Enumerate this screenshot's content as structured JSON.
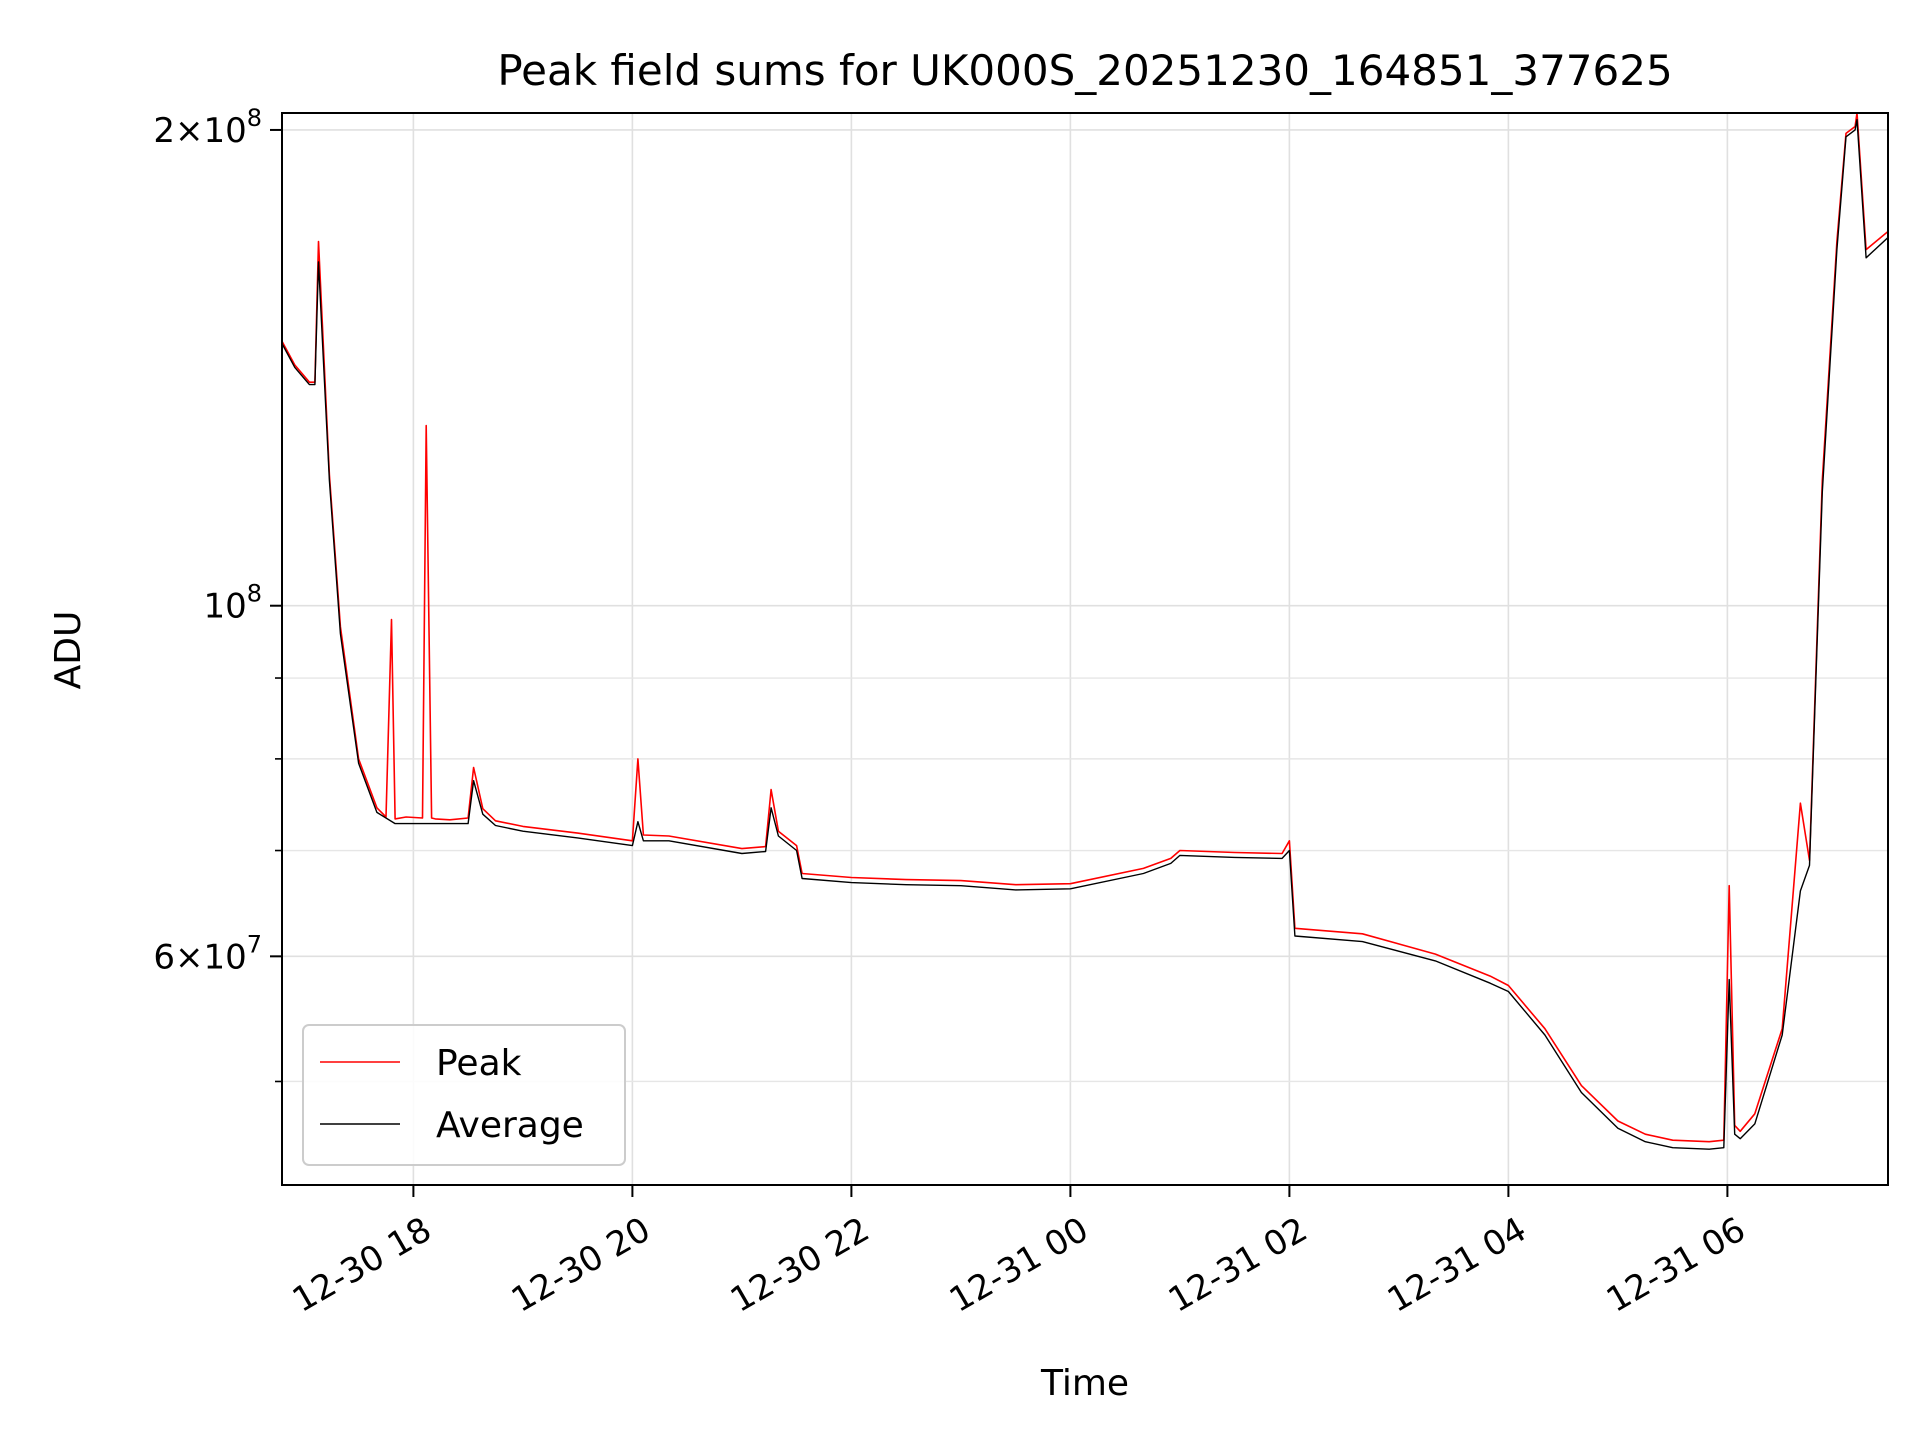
{
  "chart_data": {
    "type": "line",
    "title": "Peak field sums for UK000S_20251230_164851_377625",
    "xlabel": "Time",
    "ylabel": "ADU",
    "yscale": "log",
    "ylim": [
      43000000,
      205000000
    ],
    "xlim": [
      "2025-12-30 16:48",
      "2025-12-31 07:28"
    ],
    "grid": true,
    "legend": "lower-left",
    "x_ticks": [
      "2025-12-30 18:00",
      "2025-12-30 20:00",
      "2025-12-30 22:00",
      "2025-12-31 00:00",
      "2025-12-31 02:00",
      "2025-12-31 04:00",
      "2025-12-31 06:00"
    ],
    "x_tick_labels": [
      "12-30 18",
      "12-30 20",
      "12-30 22",
      "12-31 00",
      "12-31 02",
      "12-31 04",
      "12-31 06"
    ],
    "y_ticks": [
      {
        "value": 60000000,
        "mant": "6",
        "exp": "7"
      },
      {
        "value": 100000000,
        "mant": "",
        "exp": "8"
      },
      {
        "value": 200000000,
        "mant": "2",
        "exp": "8"
      }
    ],
    "y_minor_ticks": [
      50000000,
      70000000,
      80000000,
      90000000
    ],
    "series": [
      {
        "name": "Peak",
        "color": "#ff0000",
        "x": [
          "2025-12-30 16:48",
          "2025-12-30 16:55",
          "2025-12-30 17:03",
          "2025-12-30 17:06",
          "2025-12-30 17:08",
          "2025-12-30 17:14",
          "2025-12-30 17:20",
          "2025-12-30 17:30",
          "2025-12-30 17:40",
          "2025-12-30 17:45",
          "2025-12-30 17:48",
          "2025-12-30 17:50",
          "2025-12-30 17:56",
          "2025-12-30 18:05",
          "2025-12-30 18:07",
          "2025-12-30 18:10",
          "2025-12-30 18:12",
          "2025-12-30 18:20",
          "2025-12-30 18:30",
          "2025-12-30 18:33",
          "2025-12-30 18:38",
          "2025-12-30 18:45",
          "2025-12-30 19:00",
          "2025-12-30 19:30",
          "2025-12-30 20:00",
          "2025-12-30 20:03",
          "2025-12-30 20:06",
          "2025-12-30 20:20",
          "2025-12-30 21:00",
          "2025-12-30 21:13",
          "2025-12-30 21:16",
          "2025-12-30 21:20",
          "2025-12-30 21:30",
          "2025-12-30 21:33",
          "2025-12-30 22:00",
          "2025-12-30 22:30",
          "2025-12-30 23:00",
          "2025-12-30 23:30",
          "2025-12-31 00:00",
          "2025-12-31 00:40",
          "2025-12-31 00:55",
          "2025-12-31 01:00",
          "2025-12-31 01:30",
          "2025-12-31 01:56",
          "2025-12-31 02:00",
          "2025-12-31 02:03",
          "2025-12-31 02:40",
          "2025-12-31 03:20",
          "2025-12-31 03:50",
          "2025-12-31 04:00",
          "2025-12-31 04:20",
          "2025-12-31 04:40",
          "2025-12-31 05:00",
          "2025-12-31 05:15",
          "2025-12-31 05:30",
          "2025-12-31 05:50",
          "2025-12-31 05:58",
          "2025-12-31 06:01",
          "2025-12-31 06:04",
          "2025-12-31 06:07",
          "2025-12-31 06:15",
          "2025-12-31 06:30",
          "2025-12-31 06:40",
          "2025-12-31 06:45",
          "2025-12-31 06:52",
          "2025-12-31 07:00",
          "2025-12-31 07:05",
          "2025-12-31 07:10",
          "2025-12-31 07:11",
          "2025-12-31 07:16",
          "2025-12-31 07:28"
        ],
        "y": [
          147000000,
          142000000,
          138500000,
          138500000,
          170000000,
          121000000,
          97000000,
          80000000,
          74500000,
          73500000,
          98000000,
          73300000,
          73500000,
          73400000,
          130000000,
          73400000,
          73300000,
          73200000,
          73400000,
          79000000,
          74400000,
          73100000,
          72500000,
          71800000,
          71000000,
          80000000,
          71600000,
          71500000,
          70200000,
          70400000,
          76500000,
          72000000,
          70500000,
          67700000,
          67300000,
          67100000,
          67000000,
          66600000,
          66700000,
          68200000,
          69200000,
          70000000,
          69800000,
          69700000,
          71000000,
          62500000,
          62000000,
          60200000,
          58300000,
          57500000,
          54000000,
          49700000,
          47200000,
          46300000,
          45900000,
          45800000,
          45900000,
          66500000,
          46900000,
          46500000,
          47700000,
          54000000,
          75000000,
          69000000,
          120000000,
          170000000,
          199000000,
          201000000,
          205000000,
          168000000,
          172500000
        ]
      },
      {
        "name": "Average",
        "color": "#000000",
        "x": [
          "2025-12-30 16:48",
          "2025-12-30 16:55",
          "2025-12-30 17:03",
          "2025-12-30 17:06",
          "2025-12-30 17:08",
          "2025-12-30 17:14",
          "2025-12-30 17:20",
          "2025-12-30 17:30",
          "2025-12-30 17:40",
          "2025-12-30 17:50",
          "2025-12-30 18:10",
          "2025-12-30 18:30",
          "2025-12-30 18:33",
          "2025-12-30 18:38",
          "2025-12-30 18:45",
          "2025-12-30 19:00",
          "2025-12-30 19:30",
          "2025-12-30 20:00",
          "2025-12-30 20:03",
          "2025-12-30 20:06",
          "2025-12-30 20:20",
          "2025-12-30 21:00",
          "2025-12-30 21:13",
          "2025-12-30 21:16",
          "2025-12-30 21:20",
          "2025-12-30 21:30",
          "2025-12-30 21:33",
          "2025-12-30 22:00",
          "2025-12-30 22:30",
          "2025-12-30 23:00",
          "2025-12-30 23:30",
          "2025-12-31 00:00",
          "2025-12-31 00:40",
          "2025-12-31 00:55",
          "2025-12-31 01:00",
          "2025-12-31 01:30",
          "2025-12-31 01:56",
          "2025-12-31 02:00",
          "2025-12-31 02:03",
          "2025-12-31 02:40",
          "2025-12-31 03:20",
          "2025-12-31 03:50",
          "2025-12-31 04:00",
          "2025-12-31 04:20",
          "2025-12-31 04:40",
          "2025-12-31 05:00",
          "2025-12-31 05:15",
          "2025-12-31 05:30",
          "2025-12-31 05:50",
          "2025-12-31 05:58",
          "2025-12-31 06:01",
          "2025-12-31 06:04",
          "2025-12-31 06:07",
          "2025-12-31 06:15",
          "2025-12-31 06:30",
          "2025-12-31 06:40",
          "2025-12-31 06:45",
          "2025-12-31 06:52",
          "2025-12-31 07:00",
          "2025-12-31 07:05",
          "2025-12-31 07:10",
          "2025-12-31 07:11",
          "2025-12-31 07:16",
          "2025-12-31 07:28"
        ],
        "y": [
          146500000,
          141500000,
          138000000,
          138000000,
          165000000,
          120000000,
          96000000,
          79500000,
          74000000,
          72800000,
          72800000,
          72800000,
          77500000,
          73800000,
          72600000,
          72000000,
          71300000,
          70500000,
          73000000,
          71000000,
          71000000,
          69700000,
          69900000,
          74500000,
          71500000,
          70000000,
          67200000,
          66800000,
          66600000,
          66500000,
          66100000,
          66200000,
          67700000,
          68700000,
          69500000,
          69300000,
          69200000,
          70000000,
          61800000,
          61300000,
          59600000,
          57700000,
          57000000,
          53500000,
          49200000,
          46700000,
          45800000,
          45400000,
          45300000,
          45400000,
          58000000,
          46300000,
          46000000,
          47000000,
          53500000,
          66000000,
          68500000,
          118000000,
          168000000,
          198000000,
          200000000,
          203000000,
          166000000,
          171000000
        ]
      }
    ]
  }
}
